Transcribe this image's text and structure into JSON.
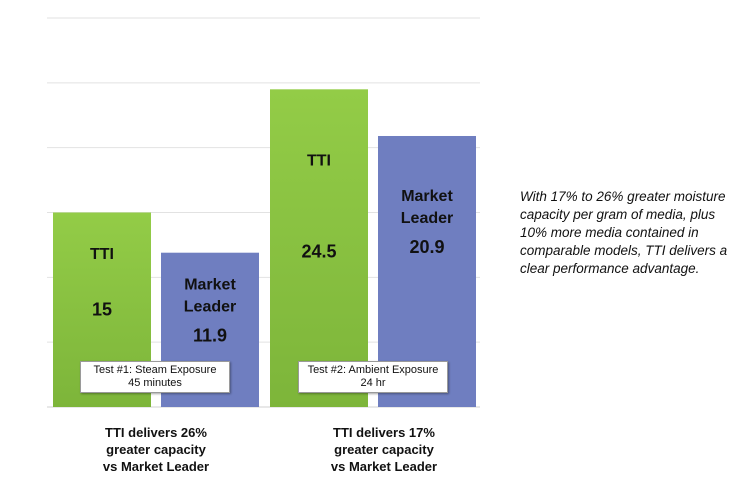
{
  "chart_data": {
    "type": "bar",
    "groups": [
      {
        "test_label": [
          "Test #1: Steam Exposure",
          "45 minutes"
        ],
        "caption": [
          "TTI delivers 26%",
          "greater capacity",
          "vs Market Leader"
        ],
        "bars": [
          {
            "name": "TTI",
            "value": 15,
            "value_label": "15"
          },
          {
            "name": "Market Leader",
            "value": 11.9,
            "value_label": "11.9"
          }
        ]
      },
      {
        "test_label": [
          "Test #2: Ambient Exposure",
          "24 hr"
        ],
        "caption": [
          "TTI delivers 17%",
          "greater capacity",
          "vs Market Leader"
        ],
        "bars": [
          {
            "name": "TTI",
            "value": 24.5,
            "value_label": "24.5"
          },
          {
            "name": "Market Leader",
            "value": 20.9,
            "value_label": "20.9"
          }
        ]
      }
    ],
    "ylim": [
      0,
      30
    ],
    "gridlines": [
      5,
      10,
      15,
      20,
      25,
      30
    ],
    "grid": true,
    "colors": {
      "TTI": "#8cc63f",
      "Market Leader": "#6f7ec0"
    }
  },
  "note": "With 17% to 26% greater moisture capacity per gram of media, plus 10% more media contained in comparable models, TTI delivers a clear performance advantage."
}
